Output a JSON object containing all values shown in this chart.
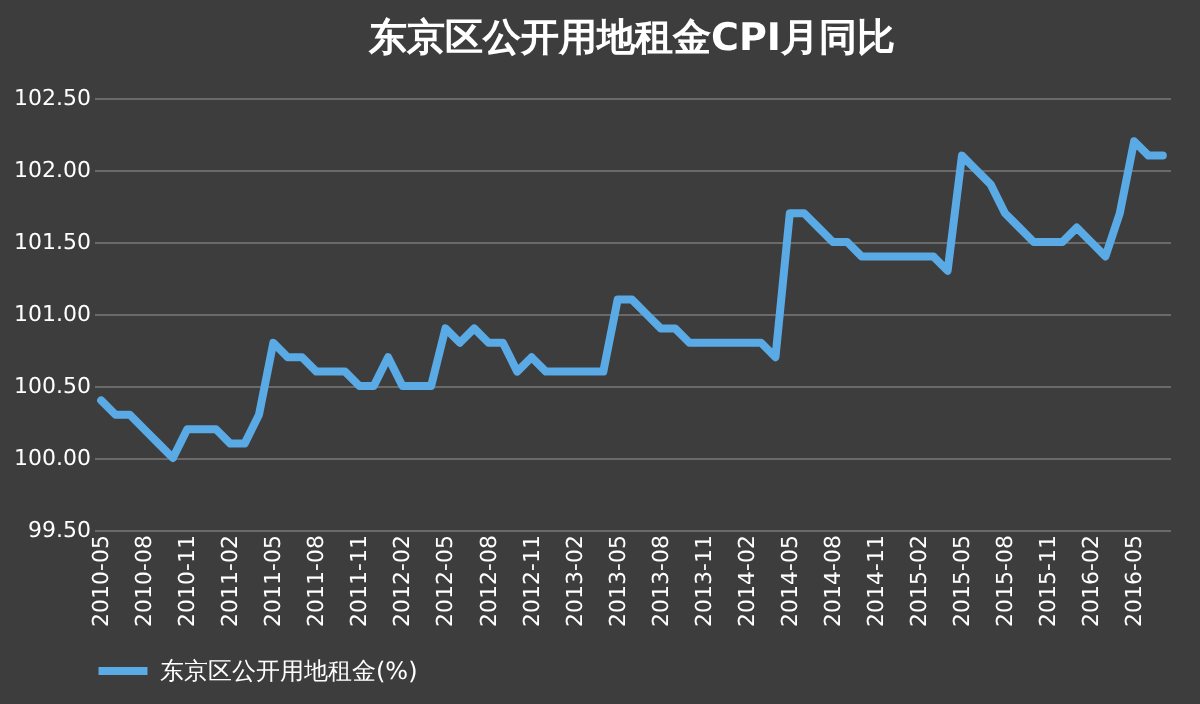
{
  "chart_data": {
    "type": "line",
    "title": "东京区公开用地租金CPI月同比",
    "categories": [
      "2010-05",
      null,
      null,
      "2010-08",
      null,
      null,
      "2010-11",
      null,
      null,
      "2011-02",
      null,
      null,
      "2011-05",
      null,
      null,
      "2011-08",
      null,
      null,
      "2011-11",
      null,
      null,
      "2012-02",
      null,
      null,
      "2012-05",
      null,
      null,
      "2012-08",
      null,
      null,
      "2012-11",
      null,
      null,
      "2013-02",
      null,
      null,
      "2013-05",
      null,
      null,
      "2013-08",
      null,
      null,
      "2013-11",
      null,
      null,
      "2014-02",
      null,
      null,
      "2014-05",
      null,
      null,
      "2014-08",
      null,
      null,
      "2014-11",
      null,
      null,
      "2015-02",
      null,
      null,
      "2015-05",
      null,
      null,
      "2015-08",
      null,
      null,
      "2015-11",
      null,
      null,
      "2016-02",
      null,
      null,
      "2016-05",
      null,
      null
    ],
    "series": [
      {
        "name": "东京区公开用地租金(%)",
        "color": "#5aaae6",
        "values": [
          100.4,
          100.3,
          100.3,
          100.2,
          100.1,
          100.0,
          100.2,
          100.2,
          100.2,
          100.1,
          100.1,
          100.3,
          100.8,
          100.7,
          100.7,
          100.6,
          100.6,
          100.6,
          100.5,
          100.5,
          100.7,
          100.5,
          100.5,
          100.5,
          100.9,
          100.8,
          100.9,
          100.8,
          100.8,
          100.6,
          100.7,
          100.6,
          100.6,
          100.6,
          100.6,
          100.6,
          101.1,
          101.1,
          101.0,
          100.9,
          100.9,
          100.8,
          100.8,
          100.8,
          100.8,
          100.8,
          100.8,
          100.7,
          101.7,
          101.7,
          101.6,
          101.5,
          101.5,
          101.4,
          101.4,
          101.4,
          101.4,
          101.4,
          101.4,
          101.3,
          102.1,
          102.0,
          101.9,
          101.7,
          101.6,
          101.5,
          101.5,
          101.5,
          101.6,
          101.5,
          101.4,
          101.7,
          102.2,
          102.1,
          102.1
        ]
      }
    ],
    "ylim": [
      99.5,
      102.5
    ],
    "yticks": [
      {
        "value": 99.5,
        "label": "99.50"
      },
      {
        "value": 100,
        "label": "100.00"
      },
      {
        "value": 100.5,
        "label": "100.50"
      },
      {
        "value": 101,
        "label": "101.00"
      },
      {
        "value": 101.5,
        "label": "101.50"
      },
      {
        "value": 102,
        "label": "102.00"
      },
      {
        "value": 102.5,
        "label": "102.50"
      }
    ],
    "grid": "y",
    "legend": "bottom",
    "marker": "none",
    "line_style": "solid"
  }
}
